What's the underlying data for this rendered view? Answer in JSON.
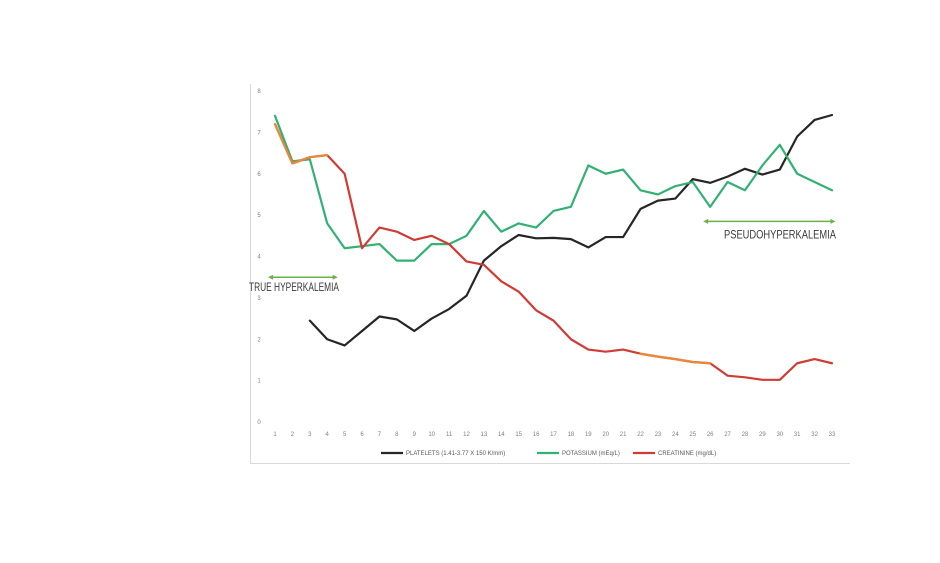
{
  "chart_data": {
    "type": "line",
    "title": "",
    "xlabel": "",
    "ylabel": "",
    "ylim": [
      0,
      8
    ],
    "yticks": [
      0,
      1,
      2,
      3,
      4,
      5,
      6,
      7,
      8
    ],
    "x": [
      1,
      2,
      3,
      4,
      5,
      6,
      7,
      8,
      9,
      10,
      11,
      12,
      13,
      14,
      15,
      16,
      17,
      18,
      19,
      20,
      21,
      22,
      23,
      24,
      25,
      26,
      27,
      28,
      29,
      30,
      31,
      32,
      33
    ],
    "grid": false,
    "legend_position": "bottom",
    "series": [
      {
        "name": "PLATELETS (1.41-3.77 X 150 K/mm)",
        "color": "#262626",
        "values": [
          null,
          null,
          2.45,
          2.0,
          1.85,
          2.2,
          2.55,
          2.48,
          2.2,
          2.5,
          2.73,
          3.05,
          3.9,
          4.25,
          4.52,
          4.44,
          4.45,
          4.42,
          4.22,
          4.47,
          4.47,
          5.15,
          5.35,
          5.4,
          5.87,
          5.78,
          5.93,
          6.12,
          5.98,
          6.1,
          6.9,
          7.3,
          7.42
        ]
      },
      {
        "name": "POTASSIUM (mEq/L)",
        "color": "#33b073",
        "values": [
          7.4,
          6.3,
          6.35,
          4.8,
          4.2,
          4.25,
          4.3,
          3.9,
          3.9,
          4.3,
          4.3,
          4.5,
          5.1,
          4.6,
          4.8,
          4.7,
          5.1,
          5.2,
          6.2,
          6.0,
          6.1,
          5.6,
          5.5,
          5.7,
          5.8,
          5.2,
          5.8,
          5.6,
          6.2,
          6.7,
          6.0,
          5.8,
          5.6
        ]
      },
      {
        "name": "CREATININE (mg/dL)",
        "color": "#d03b34",
        "values": [
          7.2,
          6.25,
          6.4,
          6.45,
          6.0,
          4.2,
          4.7,
          4.6,
          4.4,
          4.5,
          4.3,
          3.88,
          3.8,
          3.4,
          3.15,
          2.7,
          2.45,
          2.0,
          1.75,
          1.7,
          1.75,
          1.65,
          1.58,
          1.52,
          1.45,
          1.42,
          1.12,
          1.08,
          1.02,
          1.02,
          1.42,
          1.52,
          1.42
        ]
      }
    ],
    "orange_segments": [
      [
        1,
        4
      ],
      [
        22,
        26
      ]
    ],
    "orange_color": "#e8883a",
    "annotations": [
      {
        "text": "TRUE HYPERKALEMIA",
        "arrow_from": 0.6,
        "arrow_to": 4.6,
        "y": 3.5
      },
      {
        "text": "PSEUDOHYPERKALEMIA",
        "arrow_from": 25.6,
        "arrow_to": 33.2,
        "y": 4.85
      }
    ],
    "arrow_color": "#6db04a"
  }
}
